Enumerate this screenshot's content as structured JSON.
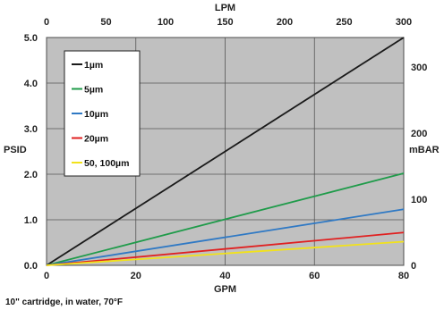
{
  "chart_data": {
    "type": "line",
    "axes": {
      "bottom": {
        "label": "GPM",
        "range": [
          0,
          80
        ],
        "ticks": [
          "0",
          "20",
          "40",
          "60",
          "80"
        ],
        "tick_values": [
          0,
          20,
          40,
          60,
          80
        ]
      },
      "top": {
        "label": "LPM",
        "range": [
          0,
          300
        ],
        "ticks": [
          "0",
          "50",
          "100",
          "150",
          "200",
          "250",
          "300"
        ],
        "tick_values": [
          0,
          50,
          100,
          150,
          200,
          250,
          300
        ]
      },
      "left": {
        "label": "PSID",
        "range": [
          0,
          5
        ],
        "ticks": [
          "0.0",
          "1.0",
          "2.0",
          "3.0",
          "4.0",
          "5.0"
        ],
        "tick_values": [
          0,
          1,
          2,
          3,
          4,
          5
        ]
      },
      "right": {
        "label": "mBAR",
        "range": [
          0,
          344.7
        ],
        "ticks": [
          "0",
          "100",
          "200",
          "300"
        ],
        "tick_values": [
          0,
          100,
          200,
          300
        ]
      }
    },
    "grid": true,
    "legend_position": "top-left",
    "footnote": "10\" cartridge, in water, 70°F",
    "series": [
      {
        "name": "1µm",
        "color": "#1a1a1a",
        "x": [
          0,
          80
        ],
        "y": [
          0,
          5.0
        ]
      },
      {
        "name": "5µm",
        "color": "#1f9b4a",
        "x": [
          0,
          80
        ],
        "y": [
          0,
          2.02
        ]
      },
      {
        "name": "10µm",
        "color": "#2f79c4",
        "x": [
          0,
          80
        ],
        "y": [
          0,
          1.23
        ]
      },
      {
        "name": "20µm",
        "color": "#e02020",
        "x": [
          0,
          80
        ],
        "y": [
          0,
          0.72
        ]
      },
      {
        "name": "50, 100µm",
        "color": "#f2e21a",
        "x": [
          0,
          80
        ],
        "y": [
          0,
          0.52
        ]
      }
    ]
  }
}
